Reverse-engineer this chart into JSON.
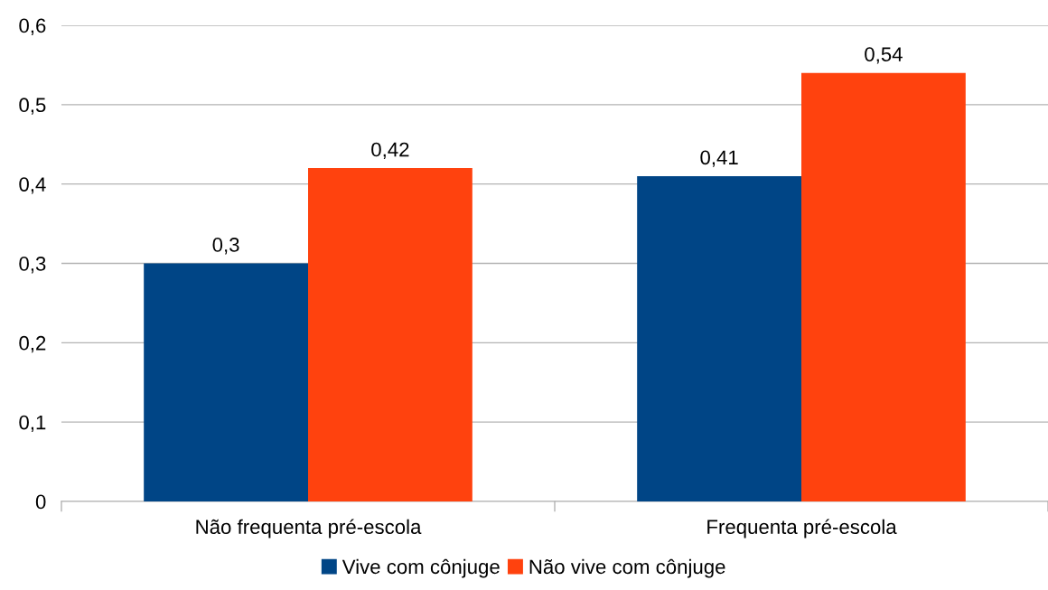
{
  "chart_data": {
    "type": "bar",
    "categories": [
      "Não frequenta pré-escola",
      "Frequenta pré-escola"
    ],
    "series": [
      {
        "name": "Vive com cônjuge",
        "color": "#004586",
        "values": [
          0.3,
          0.41
        ],
        "value_labels": [
          "0,3",
          "0,41"
        ]
      },
      {
        "name": "Não vive com cônjuge",
        "color": "#ff420e",
        "values": [
          0.42,
          0.54
        ],
        "value_labels": [
          "0,42",
          "0,54"
        ]
      }
    ],
    "ylim": [
      0,
      0.6
    ],
    "yticks": [
      0,
      {
        "value": 0.1,
        "label": "0,1"
      },
      {
        "value": 0.2,
        "label": "0,2"
      },
      {
        "value": 0.3,
        "label": "0,3"
      },
      {
        "value": 0.4,
        "label": "0,4"
      },
      {
        "value": 0.5,
        "label": "0,5"
      },
      {
        "value": 0.6,
        "label": "0,6"
      }
    ],
    "grid": "y",
    "legend": "bottom"
  }
}
